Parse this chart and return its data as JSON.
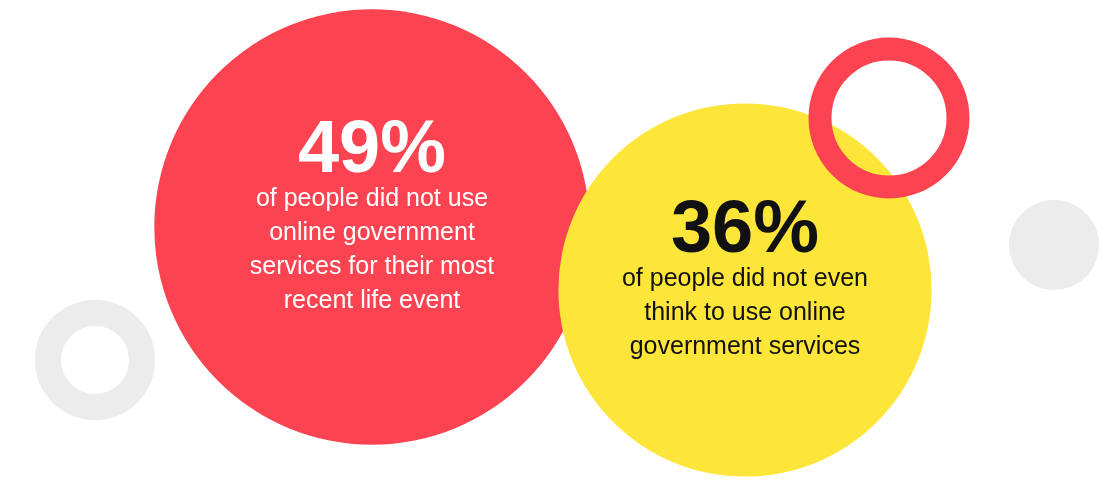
{
  "chart_data": {
    "type": "other",
    "categories": [
      "of people did not use online government services for their most recent life event",
      "of people did not even think to use online government services"
    ],
    "values": [
      49,
      36
    ],
    "value_labels": [
      "49%",
      "36%"
    ],
    "colors": [
      "#fc4351",
      "#fde53a"
    ]
  }
}
